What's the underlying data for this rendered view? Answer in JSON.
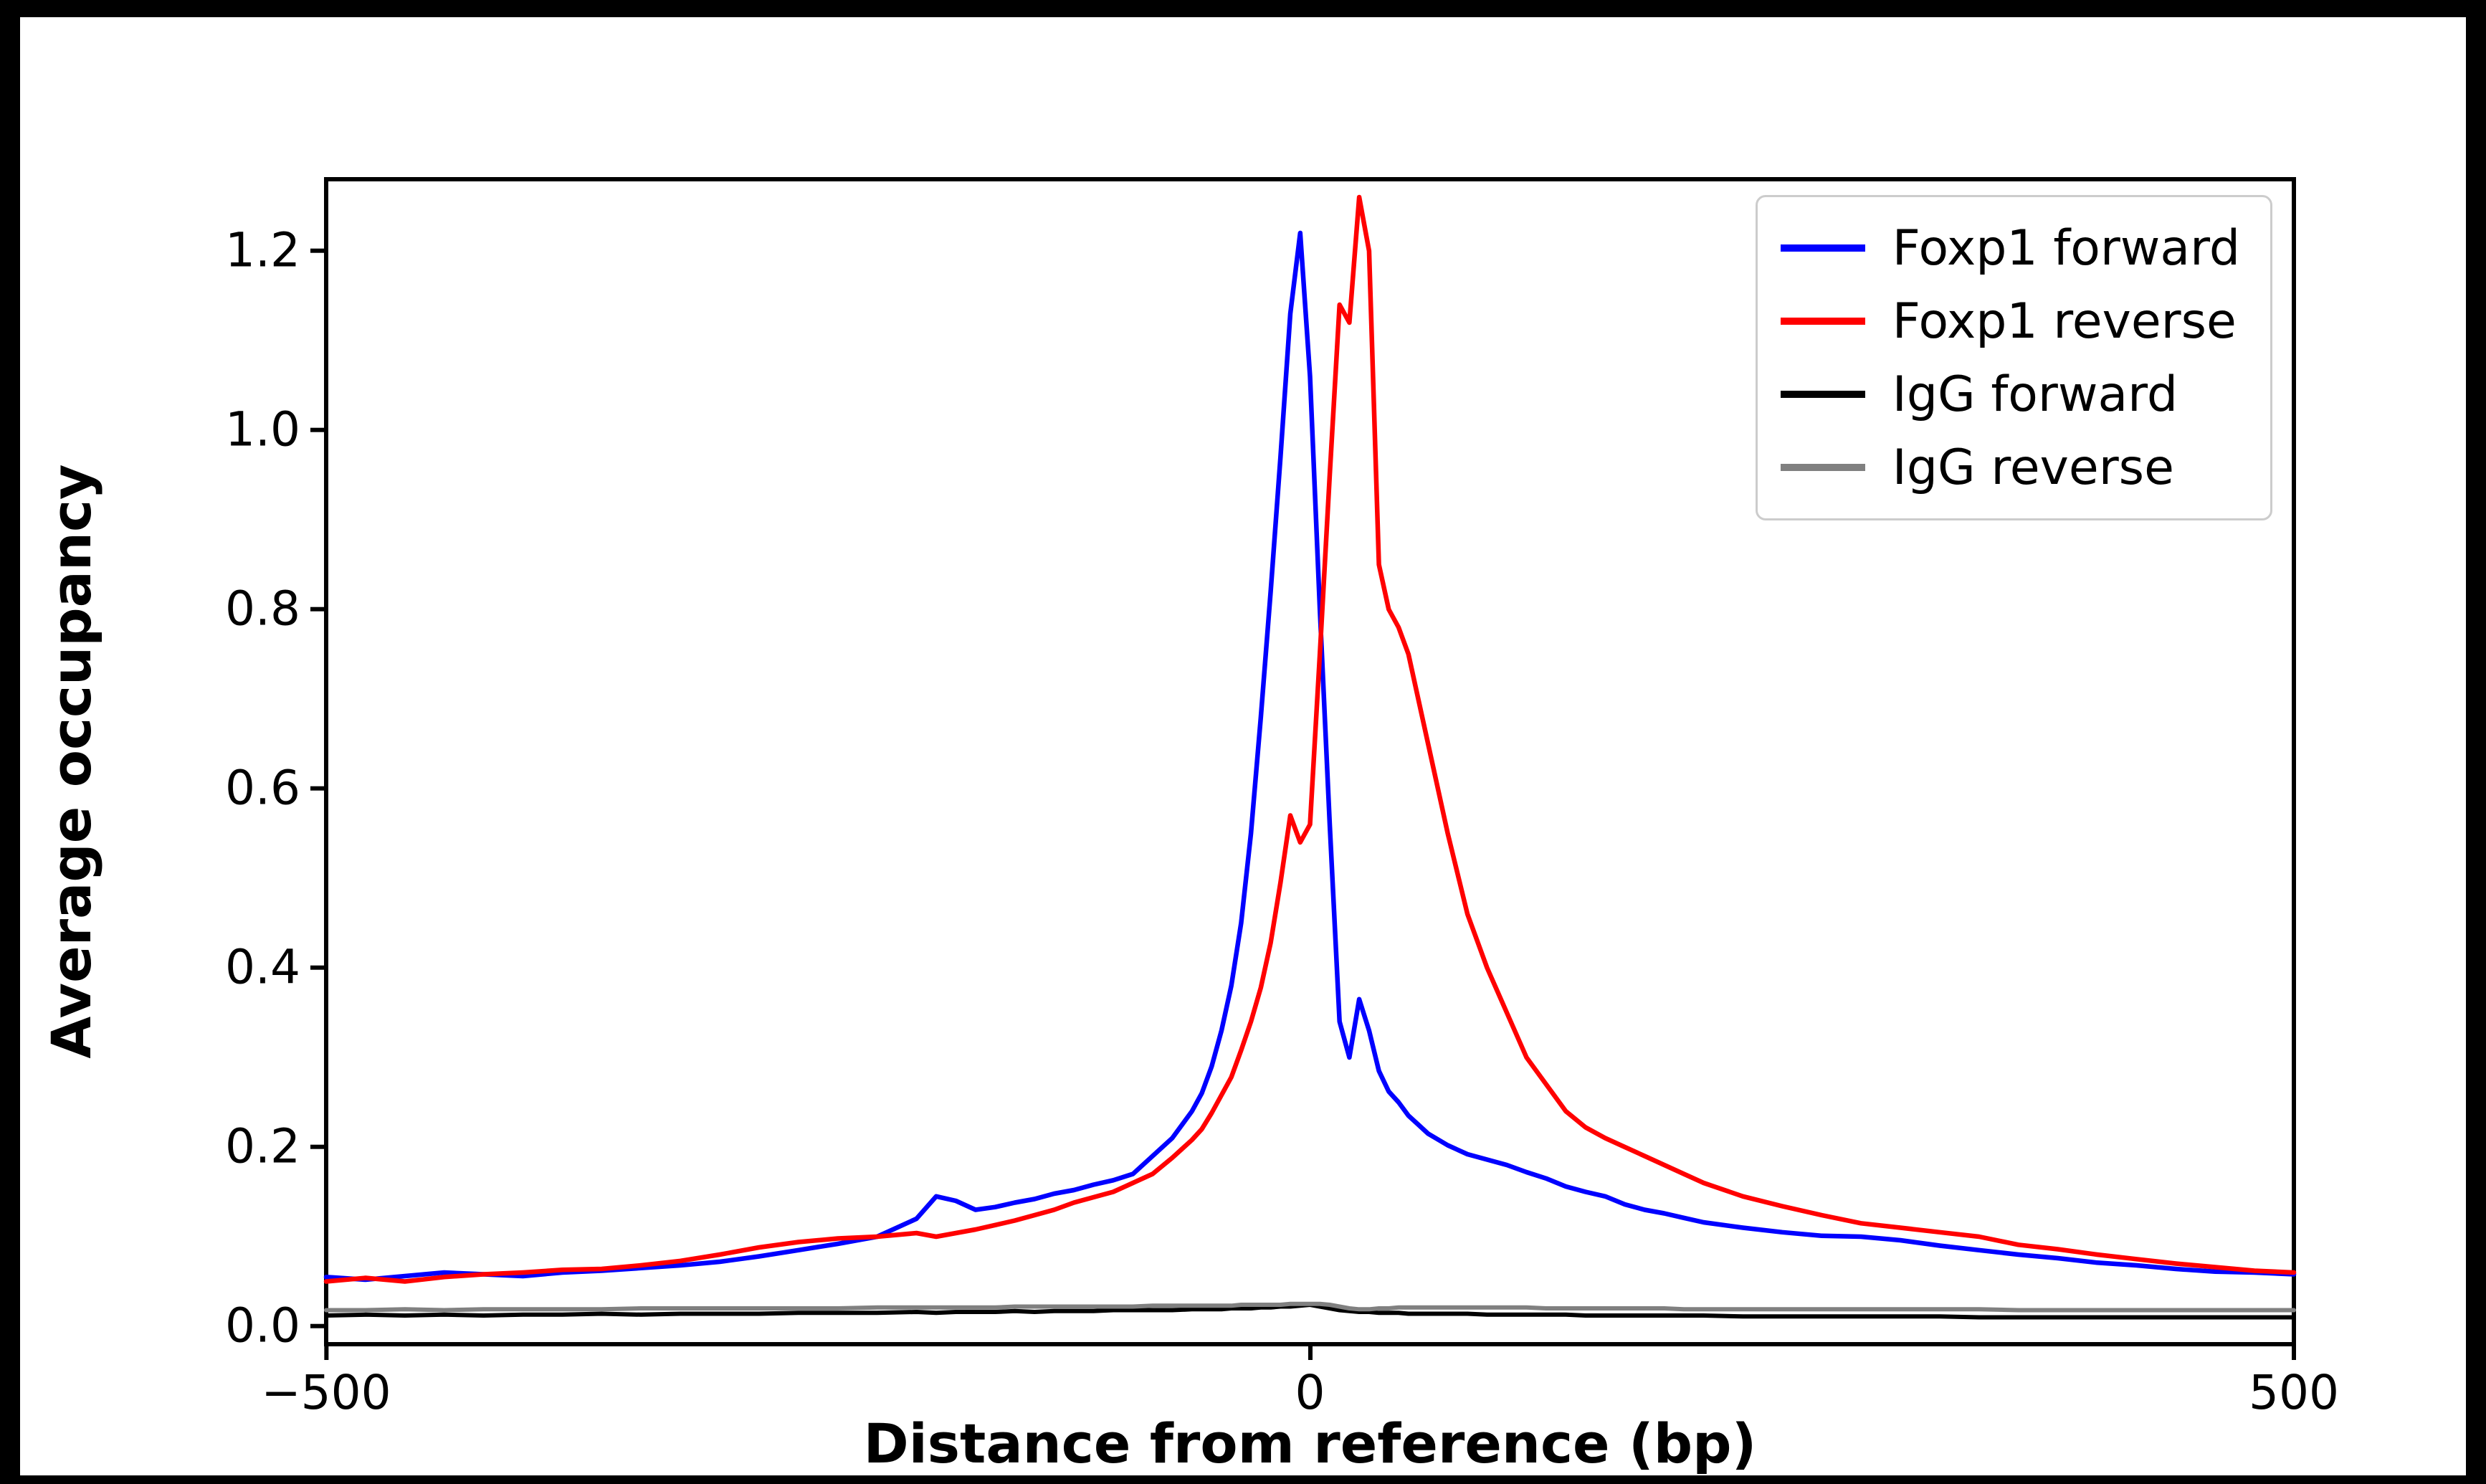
{
  "figure": {
    "frame_color": "#000000",
    "canvas_color": "#ffffff"
  },
  "chart_data": {
    "type": "line",
    "title": "",
    "xlabel": "Distance from reference (bp)",
    "ylabel": "Average occupancy",
    "xlim": [
      -500,
      500
    ],
    "ylim": [
      -0.02,
      1.28
    ],
    "grid": false,
    "legend_position": "upper right",
    "xticks": [
      {
        "value": -500,
        "label": "−500"
      },
      {
        "value": 0,
        "label": "0"
      },
      {
        "value": 500,
        "label": "500"
      }
    ],
    "yticks": [
      {
        "value": 0.0,
        "label": "0.0"
      },
      {
        "value": 0.2,
        "label": "0.2"
      },
      {
        "value": 0.4,
        "label": "0.4"
      },
      {
        "value": 0.6,
        "label": "0.6"
      },
      {
        "value": 0.8,
        "label": "0.8"
      },
      {
        "value": 1.0,
        "label": "1.0"
      },
      {
        "value": 1.2,
        "label": "1.2"
      }
    ],
    "x": [
      -500,
      -480,
      -460,
      -440,
      -420,
      -400,
      -380,
      -360,
      -340,
      -320,
      -300,
      -280,
      -260,
      -240,
      -220,
      -200,
      -190,
      -180,
      -170,
      -160,
      -150,
      -140,
      -130,
      -120,
      -110,
      -100,
      -90,
      -80,
      -70,
      -60,
      -55,
      -50,
      -45,
      -40,
      -35,
      -30,
      -25,
      -20,
      -15,
      -10,
      -5,
      0,
      5,
      10,
      15,
      20,
      25,
      30,
      35,
      40,
      45,
      50,
      55,
      60,
      70,
      80,
      90,
      100,
      110,
      120,
      130,
      140,
      150,
      160,
      170,
      180,
      190,
      200,
      220,
      240,
      260,
      280,
      300,
      320,
      340,
      360,
      380,
      400,
      420,
      440,
      460,
      480,
      500
    ],
    "series": [
      {
        "name": "Foxp1 forward",
        "color": "#0000ff",
        "line_width": 6.5,
        "values": [
          0.055,
          0.052,
          0.056,
          0.06,
          0.058,
          0.056,
          0.06,
          0.062,
          0.065,
          0.068,
          0.072,
          0.078,
          0.085,
          0.092,
          0.1,
          0.12,
          0.145,
          0.14,
          0.13,
          0.133,
          0.138,
          0.142,
          0.148,
          0.152,
          0.158,
          0.163,
          0.17,
          0.19,
          0.21,
          0.24,
          0.26,
          0.29,
          0.33,
          0.38,
          0.45,
          0.55,
          0.68,
          0.82,
          0.97,
          1.13,
          1.22,
          1.06,
          0.8,
          0.56,
          0.34,
          0.3,
          0.365,
          0.33,
          0.285,
          0.262,
          0.25,
          0.235,
          0.225,
          0.215,
          0.202,
          0.192,
          0.186,
          0.18,
          0.172,
          0.165,
          0.156,
          0.15,
          0.145,
          0.136,
          0.13,
          0.126,
          0.121,
          0.116,
          0.11,
          0.105,
          0.101,
          0.1,
          0.096,
          0.09,
          0.085,
          0.08,
          0.076,
          0.071,
          0.068,
          0.064,
          0.061,
          0.06,
          0.058
        ]
      },
      {
        "name": "Foxp1 reverse",
        "color": "#ff0000",
        "line_width": 6.5,
        "values": [
          0.05,
          0.054,
          0.05,
          0.055,
          0.058,
          0.06,
          0.063,
          0.064,
          0.068,
          0.073,
          0.08,
          0.088,
          0.094,
          0.098,
          0.1,
          0.104,
          0.1,
          0.104,
          0.108,
          0.113,
          0.118,
          0.124,
          0.13,
          0.138,
          0.144,
          0.15,
          0.16,
          0.17,
          0.188,
          0.208,
          0.22,
          0.238,
          0.258,
          0.278,
          0.308,
          0.34,
          0.378,
          0.428,
          0.495,
          0.57,
          0.54,
          0.56,
          0.75,
          0.95,
          1.14,
          1.12,
          1.26,
          1.2,
          0.85,
          0.8,
          0.78,
          0.75,
          0.7,
          0.65,
          0.55,
          0.46,
          0.4,
          0.35,
          0.3,
          0.27,
          0.24,
          0.222,
          0.21,
          0.2,
          0.19,
          0.18,
          0.17,
          0.16,
          0.145,
          0.134,
          0.124,
          0.115,
          0.11,
          0.105,
          0.1,
          0.091,
          0.086,
          0.08,
          0.075,
          0.07,
          0.066,
          0.062,
          0.06
        ]
      },
      {
        "name": "IgG forward",
        "color": "#000000",
        "line_width": 6,
        "values": [
          0.012,
          0.013,
          0.012,
          0.013,
          0.012,
          0.013,
          0.013,
          0.014,
          0.013,
          0.014,
          0.014,
          0.014,
          0.015,
          0.015,
          0.015,
          0.016,
          0.015,
          0.016,
          0.016,
          0.016,
          0.017,
          0.016,
          0.017,
          0.017,
          0.017,
          0.018,
          0.018,
          0.018,
          0.018,
          0.019,
          0.019,
          0.019,
          0.019,
          0.02,
          0.02,
          0.02,
          0.021,
          0.021,
          0.022,
          0.022,
          0.023,
          0.024,
          0.022,
          0.02,
          0.018,
          0.017,
          0.016,
          0.016,
          0.015,
          0.015,
          0.015,
          0.014,
          0.014,
          0.014,
          0.014,
          0.014,
          0.013,
          0.013,
          0.013,
          0.013,
          0.013,
          0.012,
          0.012,
          0.012,
          0.012,
          0.012,
          0.012,
          0.012,
          0.011,
          0.011,
          0.011,
          0.011,
          0.011,
          0.011,
          0.01,
          0.01,
          0.01,
          0.01,
          0.01,
          0.01,
          0.01,
          0.01,
          0.01
        ]
      },
      {
        "name": "IgG reverse",
        "color": "#808080",
        "line_width": 6,
        "values": [
          0.018,
          0.018,
          0.019,
          0.018,
          0.019,
          0.019,
          0.019,
          0.019,
          0.02,
          0.02,
          0.02,
          0.02,
          0.02,
          0.02,
          0.021,
          0.021,
          0.021,
          0.021,
          0.021,
          0.021,
          0.022,
          0.022,
          0.022,
          0.022,
          0.022,
          0.022,
          0.022,
          0.023,
          0.023,
          0.023,
          0.023,
          0.023,
          0.023,
          0.023,
          0.024,
          0.024,
          0.024,
          0.024,
          0.024,
          0.025,
          0.025,
          0.025,
          0.025,
          0.024,
          0.022,
          0.02,
          0.019,
          0.019,
          0.02,
          0.02,
          0.021,
          0.021,
          0.021,
          0.021,
          0.021,
          0.021,
          0.021,
          0.021,
          0.021,
          0.02,
          0.02,
          0.02,
          0.02,
          0.02,
          0.02,
          0.02,
          0.019,
          0.019,
          0.019,
          0.019,
          0.019,
          0.019,
          0.019,
          0.019,
          0.019,
          0.018,
          0.018,
          0.018,
          0.018,
          0.018,
          0.018,
          0.018,
          0.018
        ]
      }
    ]
  }
}
